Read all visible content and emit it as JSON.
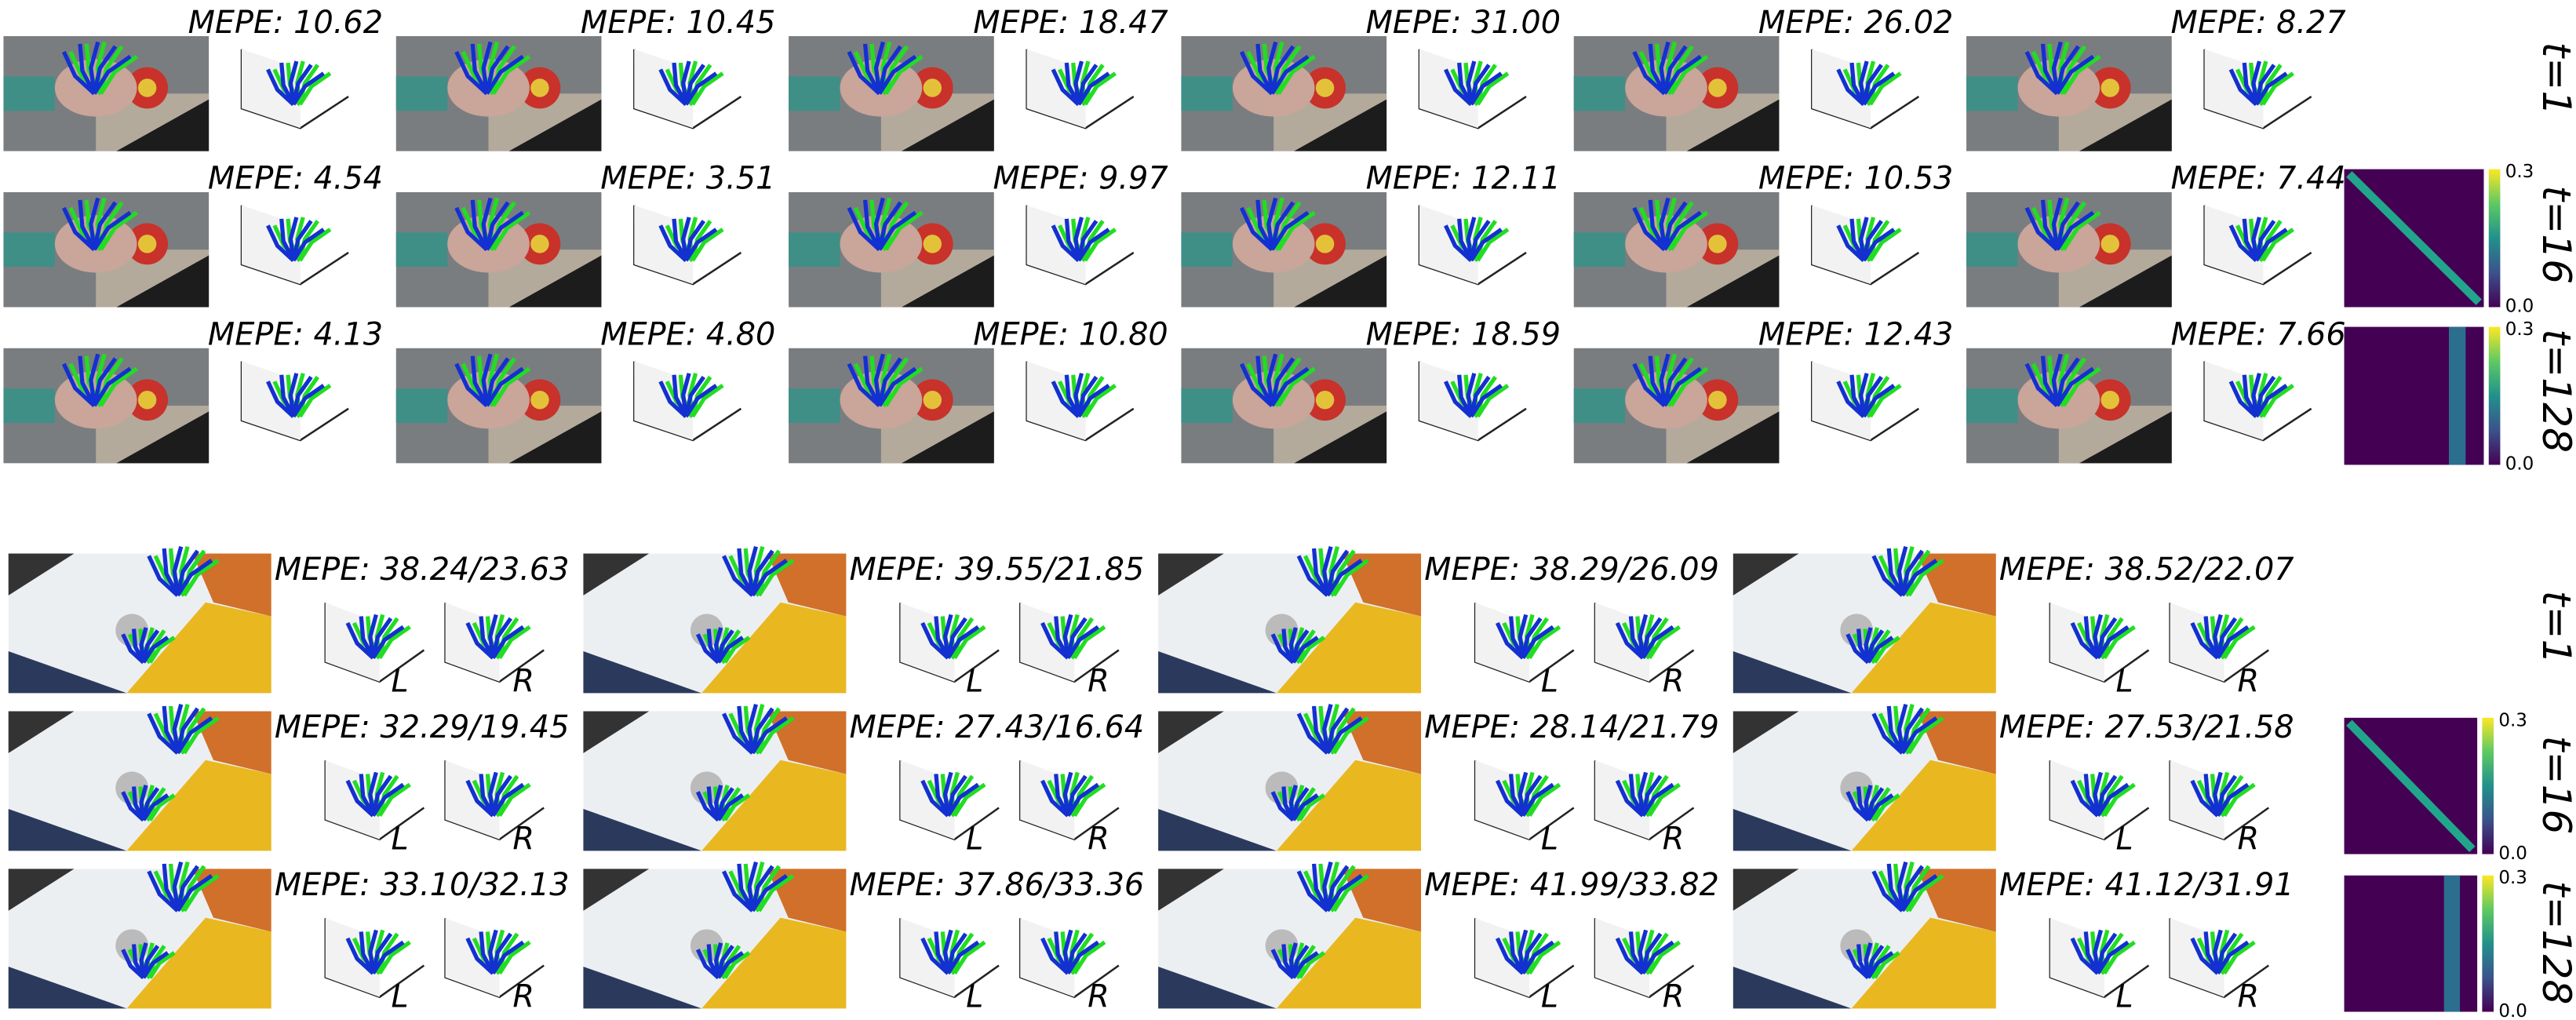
{
  "top": {
    "rows": [
      {
        "label": "t=1",
        "mepe": [
          "MEPE: 10.62",
          "MEPE: 10.45",
          "MEPE: 18.47",
          "MEPE: 31.00",
          "MEPE: 26.02",
          "MEPE: 8.27"
        ]
      },
      {
        "label": "t=16",
        "mepe": [
          "MEPE: 4.54",
          "MEPE: 3.51",
          "MEPE: 9.97",
          "MEPE: 12.11",
          "MEPE: 10.53",
          "MEPE: 7.44"
        ]
      },
      {
        "label": "t=128",
        "mepe": [
          "MEPE: 4.13",
          "MEPE: 4.80",
          "MEPE: 10.80",
          "MEPE: 18.59",
          "MEPE: 12.43",
          "MEPE: 7.66"
        ]
      }
    ],
    "colorbar": {
      "max": "0.3",
      "min": "0.0"
    }
  },
  "bottom": {
    "rows": [
      {
        "label": "t=1",
        "mepe": [
          "MEPE: 38.24/23.63",
          "MEPE: 39.55/21.85",
          "MEPE: 38.29/26.09",
          "MEPE: 38.52/22.07"
        ]
      },
      {
        "label": "t=16",
        "mepe": [
          "MEPE: 32.29/19.45",
          "MEPE: 27.43/16.64",
          "MEPE: 28.14/21.79",
          "MEPE: 27.53/21.58"
        ]
      },
      {
        "label": "t=128",
        "mepe": [
          "MEPE: 33.10/32.13",
          "MEPE: 37.86/33.36",
          "MEPE: 41.99/33.82",
          "MEPE: 41.12/31.91"
        ]
      }
    ],
    "left": "L",
    "right": "R",
    "colorbar": {
      "max": "0.3",
      "min": "0.0"
    }
  }
}
